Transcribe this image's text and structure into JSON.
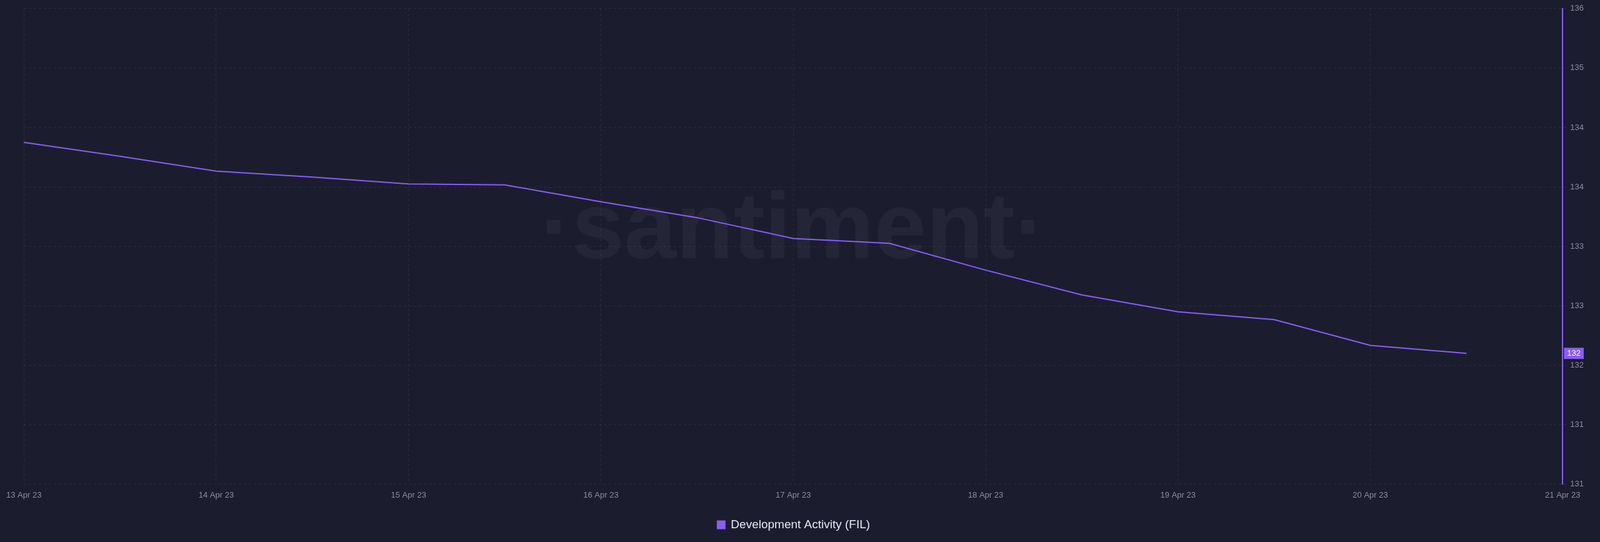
{
  "chart_data": {
    "type": "line",
    "categories": [
      "13 Apr 23",
      null,
      "14 Apr 23",
      null,
      "15 Apr 23",
      null,
      "16 Apr 23",
      null,
      "17 Apr 23",
      null,
      "18 Apr 23",
      null,
      "19 Apr 23",
      null,
      "20 Apr 23",
      null,
      "21 Apr 23"
    ],
    "series": [
      {
        "name": "Development Activity (FIL)",
        "color": "#8a5cf6",
        "values": [
          134.25,
          134.11,
          133.96,
          133.9,
          133.83,
          133.82,
          133.65,
          133.49,
          133.28,
          133.23,
          132.96,
          132.71,
          132.54,
          132.46,
          132.2,
          132.12,
          null
        ]
      }
    ],
    "ylim": [
      130.8,
      135.6
    ],
    "yticks": [
      {
        "value": 130.8,
        "label": "131"
      },
      {
        "value": 131.4,
        "label": "131"
      },
      132,
      {
        "value": 132.6,
        "label": "133"
      },
      {
        "value": 133.2,
        "label": "133"
      },
      {
        "value": 133.8,
        "label": "134"
      },
      {
        "value": 134.4,
        "label": "134"
      },
      135,
      {
        "value": 135.6,
        "label": "136"
      }
    ],
    "annotations": [
      {
        "text": "132",
        "value": 132.12
      }
    ],
    "watermark": "·santiment·",
    "grid": true,
    "legend": "bottom"
  }
}
